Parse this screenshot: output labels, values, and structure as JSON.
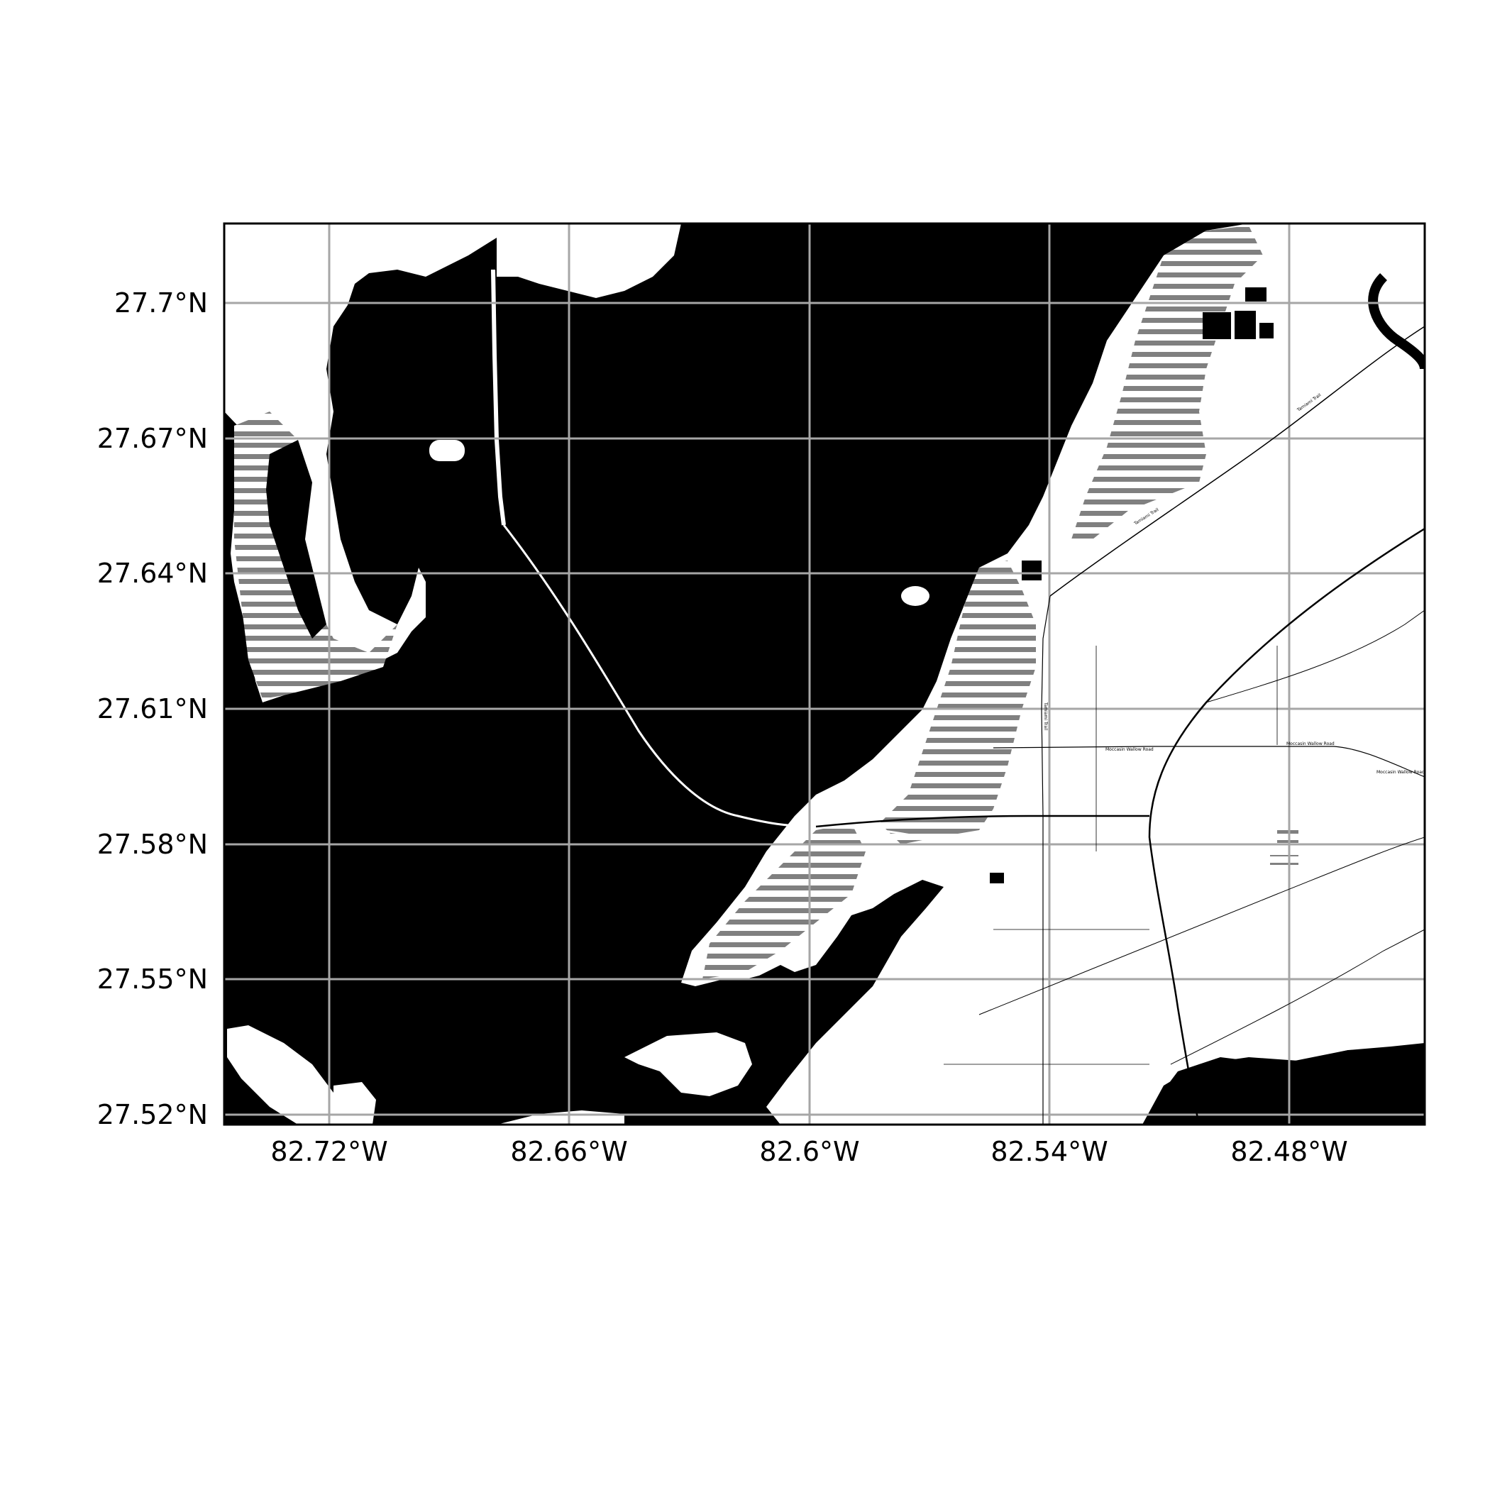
{
  "map": {
    "colors": {
      "water": "#000000",
      "land": "#ffffff",
      "wetland_stripe": "#808080",
      "grid": "#a6a6a6",
      "frame": "#000000",
      "road": "#000000"
    },
    "extent": {
      "lon_min": -82.7425,
      "lon_max": -82.4425,
      "lat_min": 27.5175,
      "lat_max": 27.7085
    },
    "grid_longitudes": [
      -82.72,
      -82.66,
      -82.6,
      -82.54,
      -82.48
    ],
    "grid_latitudes": [
      27.7,
      27.67,
      27.64,
      27.61,
      27.58,
      27.55,
      27.52
    ],
    "x_tick_labels": [
      "82.72°W",
      "82.66°W",
      "82.6°W",
      "82.54°W",
      "82.48°W"
    ],
    "y_tick_labels": [
      "27.7°N",
      "27.67°N",
      "27.64°N",
      "27.61°N",
      "27.58°N",
      "27.55°N",
      "27.52°N"
    ],
    "road_labels": [
      {
        "text": "Moccasin Wallow Road",
        "lon": -82.527,
        "lat": 27.6025
      },
      {
        "text": "Moccasin Wallow Road",
        "lon": -82.467,
        "lat": 27.6025
      },
      {
        "text": "Moccasin Wallow Road",
        "lon": -82.452,
        "lat": 27.597
      },
      {
        "text": "Tamiami Trail",
        "lon": -82.528,
        "lat": 27.613
      },
      {
        "text": "Tamiami Trail",
        "lon": -82.504,
        "lat": 27.655
      },
      {
        "text": "Tamiami Trail",
        "lon": -82.47,
        "lat": 27.68
      }
    ]
  }
}
